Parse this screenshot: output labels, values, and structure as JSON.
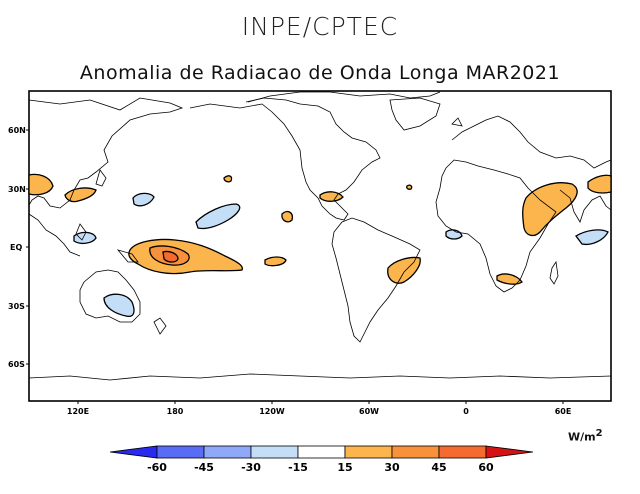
{
  "header": {
    "organization": "INPE/CPTEC",
    "title": "Anomalia de Radiacao de Onda Longa MAR2021"
  },
  "map": {
    "projection": "equirectangular",
    "lat_labels": [
      "60N",
      "30N",
      "EQ",
      "30S",
      "60S"
    ],
    "lon_labels": [
      "120E",
      "180",
      "120W",
      "60W",
      "0",
      "60E"
    ],
    "anomalies": [
      {
        "id": "w-pacific-equatorial",
        "sign": "positive",
        "category": "15 to 45",
        "region": "western equatorial Pacific"
      },
      {
        "id": "indian-ocean-nw",
        "sign": "positive",
        "category": "15 to 30",
        "region": "Arabian Sea / East Africa"
      },
      {
        "id": "n-atlantic",
        "sign": "positive",
        "category": "15 to 30",
        "region": "tropical South Atlantic"
      },
      {
        "id": "ne-pacific",
        "sign": "negative",
        "category": "-15 to -30",
        "region": "central North Pacific"
      },
      {
        "id": "australia",
        "sign": "negative",
        "category": "-15 to -30",
        "region": "eastern Australia"
      }
    ]
  },
  "colorbar": {
    "ticks": [
      "-60",
      "-45",
      "-30",
      "-15",
      "15",
      "30",
      "45",
      "60"
    ],
    "colors": [
      "#2a2aef",
      "#5a6bf5",
      "#8fa8f8",
      "#c5def8",
      "#ffffff",
      "#fbb54c",
      "#f7913b",
      "#f56a2e",
      "#d41414"
    ],
    "units": "W/m",
    "units_power": "2"
  }
}
